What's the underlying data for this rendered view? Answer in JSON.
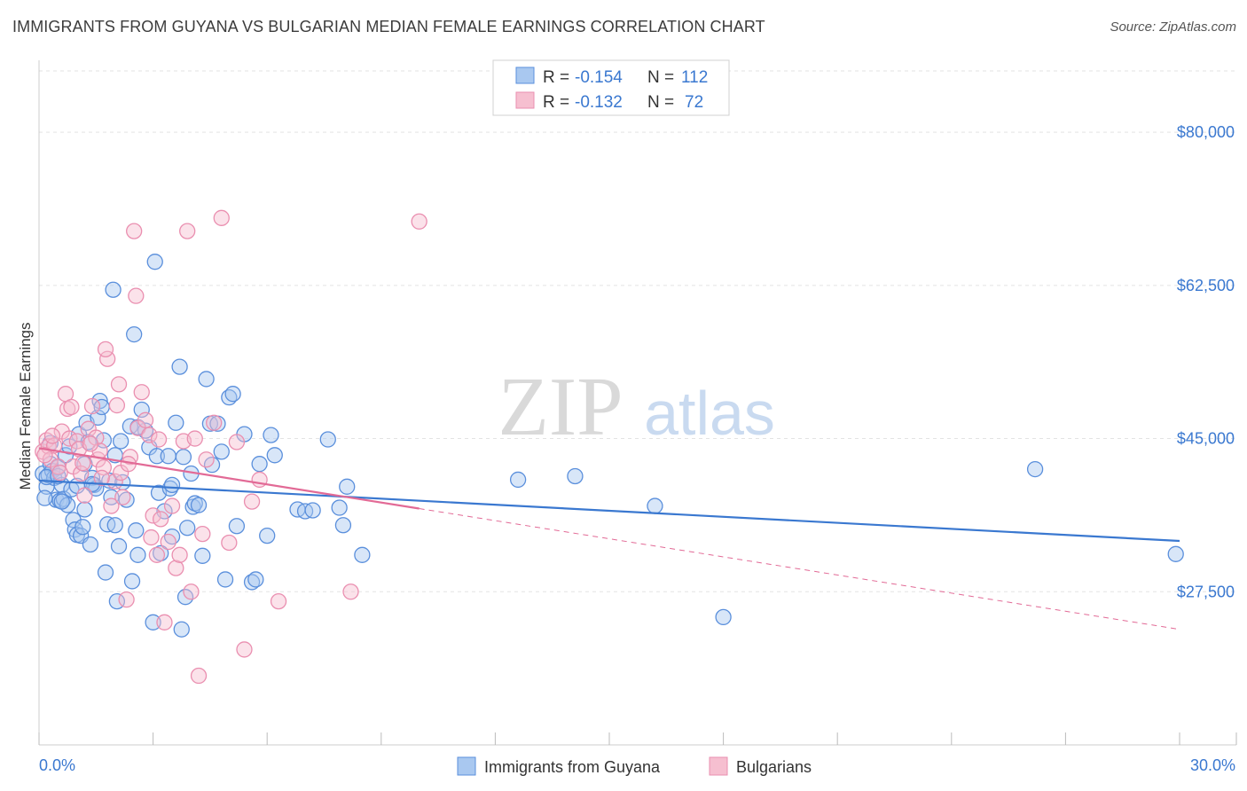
{
  "title": "IMMIGRANTS FROM GUYANA VS BULGARIAN MEDIAN FEMALE EARNINGS CORRELATION CHART",
  "source": "Source: ZipAtlas.com",
  "watermark": {
    "zip": "ZIP",
    "atlas": "atlas"
  },
  "colors": {
    "blue": "#3a78d0",
    "blue_fill": "#a9c8f0",
    "blue_stroke": "#5a8fdc",
    "pink": "#e26a96",
    "pink_fill": "#f6bfd0",
    "pink_stroke": "#ea8fb0",
    "grid": "#e3e3e3",
    "tick_label": "#3a78d0"
  },
  "legend": {
    "rows": [
      {
        "r_label": "R =",
        "r_value": "-0.154",
        "n_label": "N =",
        "n_value": "112"
      },
      {
        "r_label": "R =",
        "r_value": "-0.132",
        "n_label": "N =",
        "n_value": "72"
      }
    ]
  },
  "chart_data": {
    "type": "scatter",
    "xlabel": "",
    "ylabel": "Median Female Earnings",
    "xlim": [
      0,
      30
    ],
    "ylim": [
      10000,
      87000
    ],
    "x_tick_labels": [
      "0.0%",
      "30.0%"
    ],
    "y_ticks": [
      27500,
      45000,
      62500,
      80000
    ],
    "y_tick_labels": [
      "$27,500",
      "$45,000",
      "$62,500",
      "$80,000"
    ],
    "series": [
      {
        "name": "Immigrants from Guyana",
        "r": -0.154,
        "n": 112,
        "trend": {
          "x0": 0,
          "y0": 40200,
          "x1": 30,
          "y1": 33300,
          "solid_until": 30
        },
        "points": [
          [
            0.1,
            41000
          ],
          [
            0.2,
            39500
          ],
          [
            0.25,
            40800
          ],
          [
            0.3,
            42100
          ],
          [
            0.35,
            41300
          ],
          [
            0.4,
            40500
          ],
          [
            0.45,
            38000
          ],
          [
            0.5,
            41700
          ],
          [
            0.55,
            37900
          ],
          [
            0.6,
            39700
          ],
          [
            0.65,
            38100
          ],
          [
            0.7,
            43100
          ],
          [
            0.75,
            37400
          ],
          [
            0.8,
            44100
          ],
          [
            0.85,
            39200
          ],
          [
            0.9,
            35700
          ],
          [
            0.95,
            34600
          ],
          [
            1.0,
            34000
          ],
          [
            1.05,
            45500
          ],
          [
            1.1,
            33900
          ],
          [
            1.15,
            34900
          ],
          [
            1.2,
            36900
          ],
          [
            1.25,
            46800
          ],
          [
            1.3,
            44600
          ],
          [
            1.35,
            32900
          ],
          [
            1.4,
            40500
          ],
          [
            1.45,
            39700
          ],
          [
            1.5,
            39300
          ],
          [
            1.55,
            47400
          ],
          [
            1.6,
            49300
          ],
          [
            1.65,
            48600
          ],
          [
            1.7,
            44800
          ],
          [
            1.75,
            29700
          ],
          [
            1.8,
            35200
          ],
          [
            1.85,
            40200
          ],
          [
            1.9,
            38300
          ],
          [
            1.95,
            62000
          ],
          [
            2.0,
            35100
          ],
          [
            2.05,
            26400
          ],
          [
            2.1,
            32700
          ],
          [
            2.15,
            44700
          ],
          [
            2.2,
            40000
          ],
          [
            2.3,
            38000
          ],
          [
            2.4,
            46400
          ],
          [
            2.45,
            28700
          ],
          [
            2.5,
            56900
          ],
          [
            2.55,
            34500
          ],
          [
            2.6,
            31700
          ],
          [
            2.7,
            48300
          ],
          [
            2.8,
            45900
          ],
          [
            2.9,
            44000
          ],
          [
            3.0,
            24000
          ],
          [
            3.05,
            65200
          ],
          [
            3.1,
            43000
          ],
          [
            3.15,
            38800
          ],
          [
            3.2,
            31900
          ],
          [
            3.3,
            36700
          ],
          [
            3.4,
            43000
          ],
          [
            3.45,
            39300
          ],
          [
            3.5,
            33800
          ],
          [
            3.6,
            46800
          ],
          [
            3.7,
            53200
          ],
          [
            3.75,
            23200
          ],
          [
            3.8,
            42900
          ],
          [
            3.85,
            26900
          ],
          [
            3.9,
            34800
          ],
          [
            4.0,
            41000
          ],
          [
            4.05,
            37200
          ],
          [
            4.1,
            37600
          ],
          [
            4.3,
            31600
          ],
          [
            4.4,
            51800
          ],
          [
            4.5,
            46700
          ],
          [
            4.55,
            42000
          ],
          [
            4.7,
            46700
          ],
          [
            4.8,
            43500
          ],
          [
            4.9,
            28900
          ],
          [
            5.0,
            49700
          ],
          [
            5.1,
            50100
          ],
          [
            5.2,
            35000
          ],
          [
            5.4,
            45500
          ],
          [
            5.6,
            28600
          ],
          [
            5.7,
            28900
          ],
          [
            5.8,
            42100
          ],
          [
            6.0,
            33900
          ],
          [
            6.1,
            45400
          ],
          [
            6.2,
            43100
          ],
          [
            6.8,
            36900
          ],
          [
            7.0,
            36700
          ],
          [
            7.2,
            36800
          ],
          [
            7.6,
            44900
          ],
          [
            7.9,
            37100
          ],
          [
            8.0,
            35100
          ],
          [
            8.1,
            39500
          ],
          [
            8.5,
            31700
          ],
          [
            12.6,
            40300
          ],
          [
            14.1,
            40700
          ],
          [
            16.2,
            37300
          ],
          [
            18.0,
            24600
          ],
          [
            26.2,
            41500
          ],
          [
            29.9,
            31800
          ],
          [
            0.15,
            38200
          ],
          [
            0.2,
            40600
          ],
          [
            0.3,
            44500
          ],
          [
            0.5,
            40700
          ],
          [
            0.6,
            37800
          ],
          [
            1.0,
            39600
          ],
          [
            1.2,
            42100
          ],
          [
            1.4,
            39800
          ],
          [
            2.0,
            43100
          ],
          [
            2.6,
            46300
          ],
          [
            3.5,
            39700
          ],
          [
            4.2,
            37400
          ]
        ]
      },
      {
        "name": "Bulgarians",
        "r": -0.132,
        "n": 72,
        "trend": {
          "x0": 0,
          "y0": 43900,
          "x1": 30,
          "y1": 23200,
          "solid_until": 10
        },
        "points": [
          [
            0.1,
            43500
          ],
          [
            0.2,
            44800
          ],
          [
            0.25,
            44100
          ],
          [
            0.3,
            42600
          ],
          [
            0.4,
            44200
          ],
          [
            0.5,
            41800
          ],
          [
            0.6,
            45800
          ],
          [
            0.7,
            50100
          ],
          [
            0.75,
            48400
          ],
          [
            0.8,
            45000
          ],
          [
            0.9,
            41800
          ],
          [
            1.0,
            44700
          ],
          [
            1.05,
            43800
          ],
          [
            1.1,
            41000
          ],
          [
            1.2,
            38500
          ],
          [
            1.3,
            46100
          ],
          [
            1.4,
            48700
          ],
          [
            1.5,
            45100
          ],
          [
            1.55,
            42600
          ],
          [
            1.6,
            43600
          ],
          [
            1.7,
            41700
          ],
          [
            1.8,
            54100
          ],
          [
            1.9,
            37300
          ],
          [
            2.0,
            40100
          ],
          [
            2.05,
            48800
          ],
          [
            2.1,
            51200
          ],
          [
            2.15,
            41100
          ],
          [
            2.2,
            38300
          ],
          [
            2.3,
            26600
          ],
          [
            2.4,
            42900
          ],
          [
            2.5,
            68700
          ],
          [
            2.55,
            61300
          ],
          [
            2.6,
            46200
          ],
          [
            2.7,
            50300
          ],
          [
            2.8,
            47100
          ],
          [
            2.9,
            45400
          ],
          [
            3.0,
            36200
          ],
          [
            3.1,
            31700
          ],
          [
            3.2,
            35800
          ],
          [
            3.3,
            24000
          ],
          [
            3.4,
            33200
          ],
          [
            3.5,
            37300
          ],
          [
            3.6,
            30200
          ],
          [
            3.7,
            31700
          ],
          [
            3.8,
            44700
          ],
          [
            3.9,
            68700
          ],
          [
            4.0,
            27500
          ],
          [
            4.1,
            45000
          ],
          [
            4.2,
            17900
          ],
          [
            4.3,
            34100
          ],
          [
            4.4,
            42600
          ],
          [
            4.6,
            46800
          ],
          [
            4.8,
            70200
          ],
          [
            5.0,
            33100
          ],
          [
            5.2,
            44600
          ],
          [
            5.4,
            20900
          ],
          [
            5.6,
            37800
          ],
          [
            5.8,
            40300
          ],
          [
            6.3,
            26400
          ],
          [
            8.2,
            27500
          ],
          [
            10.0,
            69800
          ],
          [
            0.15,
            43100
          ],
          [
            0.35,
            45300
          ],
          [
            0.55,
            41100
          ],
          [
            0.85,
            48600
          ],
          [
            1.15,
            42200
          ],
          [
            1.35,
            44400
          ],
          [
            1.65,
            40500
          ],
          [
            1.75,
            55200
          ],
          [
            2.35,
            42100
          ],
          [
            2.95,
            33700
          ],
          [
            3.15,
            44900
          ]
        ]
      }
    ]
  }
}
